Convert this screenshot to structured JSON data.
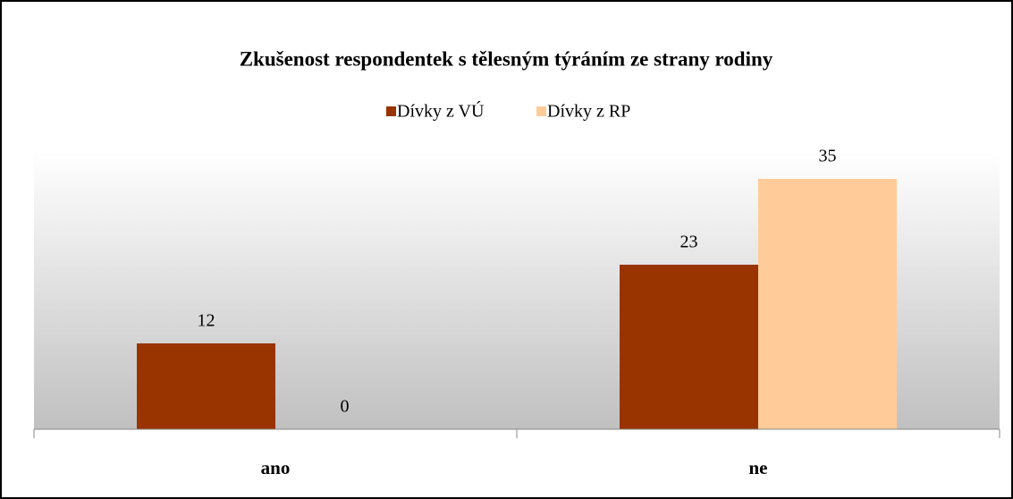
{
  "chart_data": {
    "type": "bar",
    "title": "Zkušenost respondentek s tělesným týráním ze strany rodiny",
    "categories": [
      "ano",
      "ne"
    ],
    "series": [
      {
        "name": "Dívky z VÚ",
        "color": "#993300",
        "values": [
          12,
          23
        ]
      },
      {
        "name": "Dívky z RP",
        "color": "#ffcc99",
        "values": [
          0,
          35
        ]
      }
    ],
    "legend": "top"
  }
}
